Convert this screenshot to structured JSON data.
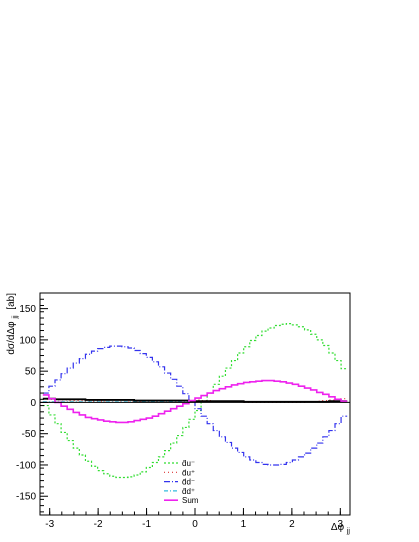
{
  "chart_data": {
    "type": "line",
    "title": "",
    "xlabel": "Δφ_jj",
    "xlabel_main": "Δφ",
    "xlabel_sub": "jj",
    "ylabel": "dσ/dΔφ_jj [ab]",
    "ylabel_main": "dσ/dΔφ",
    "ylabel_sub": "jj",
    "ylabel_unit": "[ab]",
    "xlim": [
      -3.2,
      3.2
    ],
    "ylim": [
      -180,
      175
    ],
    "grid": false,
    "legend_position": "bottom-center",
    "xticks": [
      -3,
      -2,
      -1,
      0,
      1,
      2,
      3
    ],
    "yticks": [
      -150,
      -100,
      -50,
      0,
      50,
      100,
      150
    ],
    "xtick_labels": [
      "-3",
      "-2",
      "-1",
      "0",
      "1",
      "2",
      "3"
    ],
    "ytick_labels": [
      "-150",
      "-100",
      "-50",
      "0",
      "50",
      "100",
      "150"
    ],
    "bin_edges": [
      -3.1416,
      -3.0159,
      -2.8903,
      -2.7646,
      -2.6389,
      -2.5133,
      -2.3876,
      -2.2619,
      -2.1363,
      -2.0106,
      -1.885,
      -1.7593,
      -1.6336,
      -1.508,
      -1.3823,
      -1.2566,
      -1.131,
      -1.0053,
      -0.8796,
      -0.754,
      -0.6283,
      -0.5027,
      -0.377,
      -0.2513,
      -0.1257,
      0.0,
      0.1257,
      0.2513,
      0.377,
      0.5027,
      0.6283,
      0.754,
      0.8796,
      1.0053,
      1.131,
      1.2566,
      1.3823,
      1.508,
      1.6336,
      1.7593,
      1.885,
      2.0106,
      2.1363,
      2.2619,
      2.3876,
      2.5133,
      2.6389,
      2.7646,
      2.8903,
      3.0159,
      3.1416
    ],
    "series": [
      {
        "name": "d̄u⁻",
        "color": "#33dd33",
        "dash": "2,2",
        "values": [
          -5,
          -20,
          -34,
          -48,
          -61,
          -73,
          -84,
          -94,
          -102,
          -109,
          -114,
          -118,
          -120,
          -120,
          -119,
          -116,
          -111,
          -104,
          -96,
          -87,
          -77,
          -65,
          -53,
          -40,
          -27,
          -13,
          1,
          15,
          29,
          42,
          55,
          67,
          79,
          89,
          99,
          107,
          114,
          119,
          123,
          125,
          126,
          124,
          121,
          116,
          109,
          100,
          91,
          79,
          67,
          54
        ]
      },
      {
        "name": "d̄u⁺",
        "color": "#dd3333",
        "dash": "1,3",
        "values": [
          5,
          5,
          4,
          4,
          3,
          3,
          3,
          2,
          2,
          2,
          1,
          1,
          1,
          1,
          1,
          1,
          1,
          1,
          1,
          2,
          2,
          2,
          3,
          3,
          3,
          4,
          3,
          3,
          2,
          2,
          1,
          1,
          1,
          0,
          0,
          0,
          0,
          0,
          0,
          0,
          0,
          0,
          0,
          1,
          1,
          2,
          3,
          4,
          5,
          6
        ]
      },
      {
        "name": "d̄d⁻",
        "color": "#3333ee",
        "dash": "6,2,1,2",
        "values": [
          15,
          26,
          36,
          46,
          55,
          63,
          70,
          77,
          82,
          86,
          88,
          90,
          90,
          89,
          87,
          83,
          78,
          72,
          65,
          57,
          47,
          37,
          26,
          14,
          2,
          -10,
          -22,
          -34,
          -45,
          -55,
          -64,
          -73,
          -80,
          -87,
          -92,
          -96,
          -99,
          -100,
          -100,
          -99,
          -96,
          -92,
          -87,
          -81,
          -73,
          -65,
          -55,
          -45,
          -34,
          -22
        ]
      },
      {
        "name": "d̄d⁺",
        "color": "#33bbdd",
        "dash": "4,2,1,2",
        "values": [
          1,
          1,
          1,
          1,
          1,
          1,
          1,
          1,
          1,
          1,
          1,
          1,
          1,
          1,
          1,
          1,
          1,
          1,
          1,
          1,
          1,
          1,
          1,
          1,
          1,
          1,
          1,
          1,
          1,
          1,
          1,
          1,
          1,
          1,
          1,
          1,
          1,
          1,
          1,
          1,
          1,
          1,
          1,
          1,
          1,
          1,
          1,
          1,
          1,
          1
        ]
      },
      {
        "name": "",
        "color": "#000000",
        "dash": "",
        "values": [
          6,
          6,
          5,
          5,
          5,
          5,
          5,
          4,
          4,
          4,
          4,
          4,
          4,
          4,
          4,
          3,
          3,
          3,
          3,
          3,
          3,
          3,
          3,
          3,
          2,
          2,
          2,
          2,
          2,
          2,
          2,
          2,
          2,
          1,
          1,
          1,
          1,
          1,
          1,
          1,
          1,
          1,
          1,
          1,
          1,
          1,
          1,
          2,
          2,
          2
        ]
      },
      {
        "name": "Sum",
        "color": "#ee22ee",
        "dash": "",
        "values": [
          12,
          6,
          0,
          -6,
          -11,
          -16,
          -20,
          -24,
          -26,
          -28,
          -30,
          -31,
          -32,
          -32,
          -31,
          -29,
          -27,
          -25,
          -22,
          -18,
          -14,
          -10,
          -6,
          -2,
          3,
          7,
          11,
          15,
          19,
          22,
          25,
          28,
          30,
          32,
          33,
          34,
          35,
          35,
          34,
          33,
          31,
          29,
          26,
          23,
          20,
          16,
          13,
          9,
          5,
          2
        ]
      }
    ]
  }
}
